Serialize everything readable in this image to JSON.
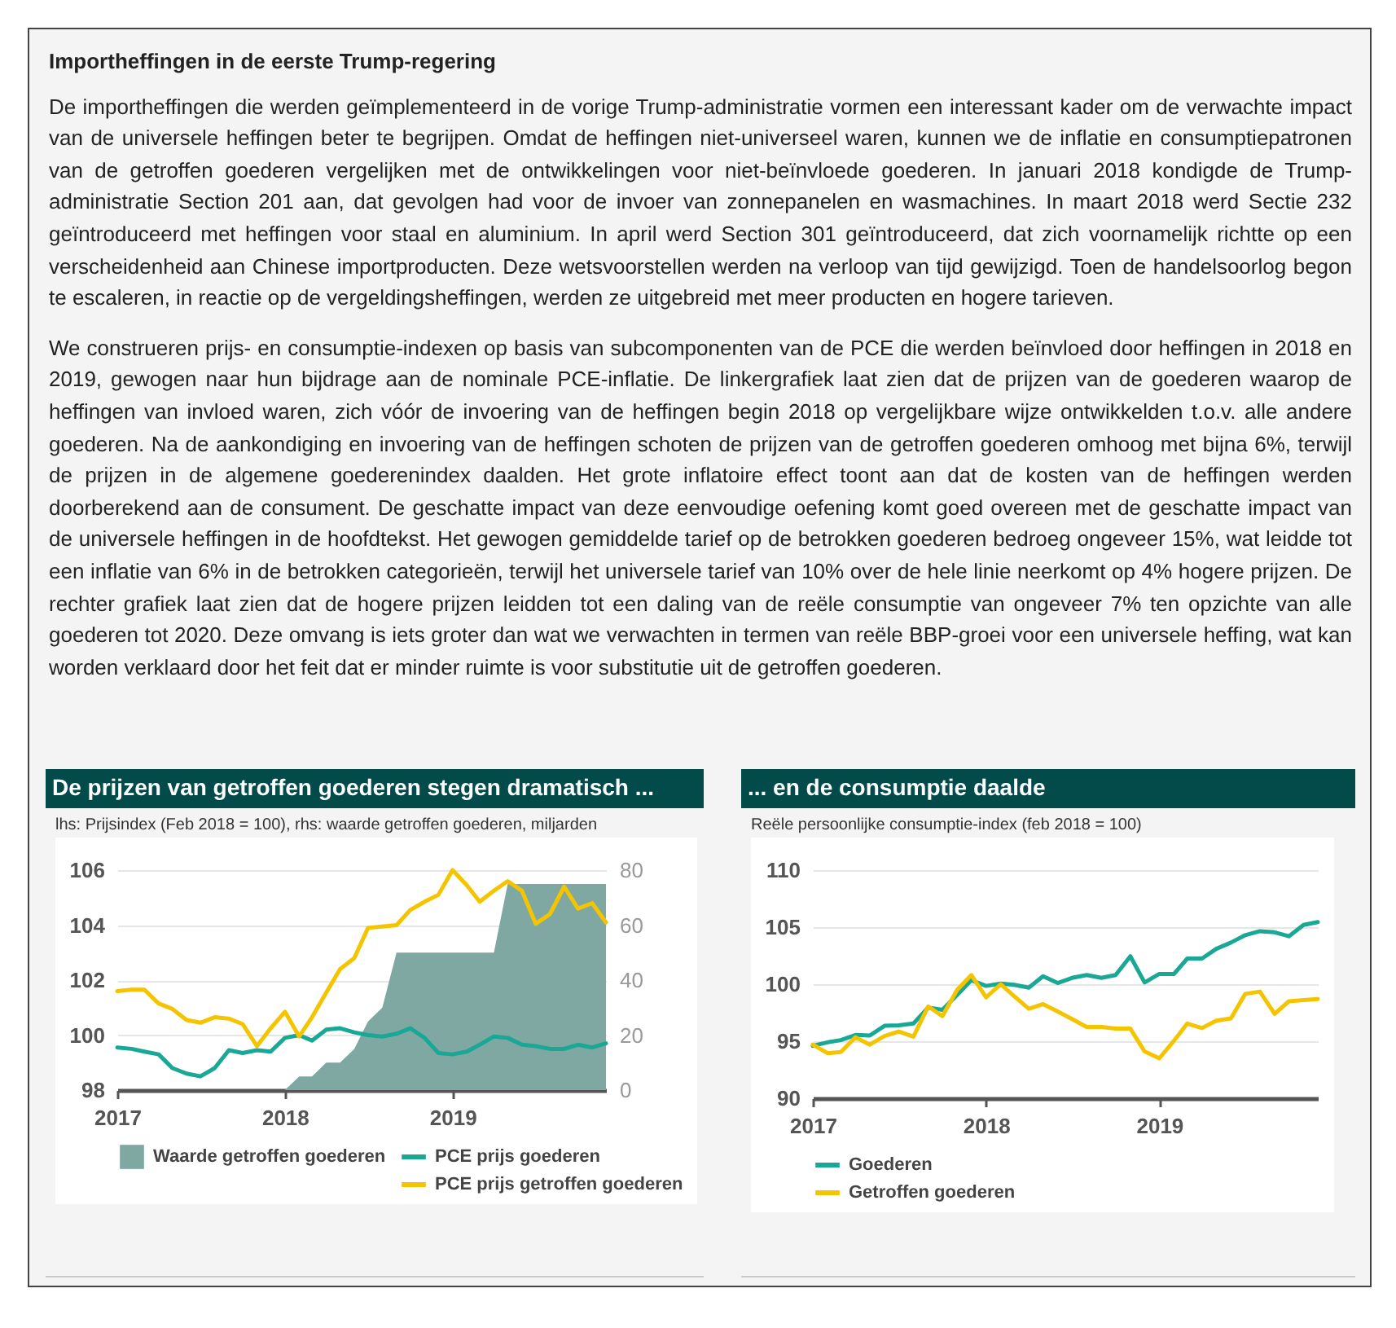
{
  "chart_data": [
    {
      "type": "other",
      "title": "Importheffingen in de eerste Trump-regering",
      "annotations": [
        "De importheffingen die werden geïmplementeerd in de vorige Trump-administratie vormen een interessant kader om de verwachte impact van de universele heffingen beter te begrijpen. Omdat de heffingen niet-universeel waren, kunnen we de inflatie en consumptiepatronen van de getroffen goederen vergelijken met de ontwikkelingen voor niet-beïnvloede goederen. In januari 2018 kondigde de Trump-administratie Section 201 aan, dat gevolgen had voor de invoer van zonnepanelen en wasmachines. In maart 2018 werd Sectie 232 geïntroduceerd met heffingen voor staal en aluminium. In april werd Section 301 geïntroduceerd, dat zich voornamelijk richtte op een verscheidenheid aan Chinese importproducten. Deze wetsvoorstellen werden na verloop van tijd gewijzigd. Toen de handelsoorlog begon te escaleren, in reactie op de vergeldingsheffingen, werden ze uitgebreid met meer producten en hogere tarieven.",
        "We construeren prijs- en consumptie-indexen op basis van subcomponenten van de PCE die werden beïnvloed door heffingen in 2018 en 2019, gewogen naar hun bijdrage aan de nominale PCE-inflatie. De linkergrafiek laat zien dat de prijzen van de goederen waarop de heffingen van invloed waren, zich vóór de invoering van de heffingen begin 2018 op vergelijkbare wijze ontwikkelden t.o.v. alle andere goederen. Na de aankondiging en invoering van de heffingen schoten de prijzen van de getroffen goederen omhoog met bijna 6%, terwijl de prijzen in de algemene goederenindex daalden. Het grote inflatoire effect toont aan dat de kosten van de heffingen werden doorberekend aan de consument. De geschatte impact van deze eenvoudige oefening komt goed overeen met de geschatte impact van de universele heffingen in de hoofdtekst. Het gewogen gemiddelde tarief op de betrokken goederen bedroeg ongeveer 15%, wat leidde tot een inflatie van 6% in de betrokken categorieën, terwijl het universele tarief van 10% over de hele linie neerkomt op 4% hogere prijzen. De rechter grafiek laat zien dat de hogere prijzen leidden tot een daling van de reële consumptie van ongeveer 7% ten opzichte van alle goederen tot 2020. Deze omvang is iets groter dan wat we verwachten in termen van reële BBP-groei voor een universele heffing, wat kan worden verklaard door het feit dat er minder ruimte is voor substitutie uit de getroffen goederen."
      ]
    },
    {
      "type": "line",
      "title": "De prijzen van getroffen goederen stegen dramatisch ...",
      "subtitle": "lhs: Prijsindex (Feb 2018 = 100), rhs: waarde getroffen goederen, miljarden",
      "x": [
        "2017-01",
        "2017-02",
        "2017-03",
        "2017-04",
        "2017-05",
        "2017-06",
        "2017-07",
        "2017-08",
        "2017-09",
        "2017-10",
        "2017-11",
        "2017-12",
        "2018-01",
        "2018-02",
        "2018-03",
        "2018-04",
        "2018-05",
        "2018-06",
        "2018-07",
        "2018-08",
        "2018-09",
        "2018-10",
        "2018-11",
        "2018-12",
        "2019-01",
        "2019-02",
        "2019-03",
        "2019-04",
        "2019-05",
        "2019-06",
        "2019-07",
        "2019-08",
        "2019-09",
        "2019-10",
        "2019-11",
        "2019-12"
      ],
      "xlim": [
        "2017-01",
        "2019-12"
      ],
      "xticks": [
        "2017",
        "2018",
        "2019"
      ],
      "ylim": [
        98,
        106
      ],
      "yticks": [
        98,
        100,
        102,
        104,
        106
      ],
      "y2lim": [
        0,
        80
      ],
      "y2ticks": [
        0,
        20,
        40,
        60,
        80
      ],
      "grid": "y",
      "legend": "bottom",
      "series": [
        {
          "name": "Waarde getroffen goederen",
          "type": "area",
          "axis": "y2",
          "color": "#7fa8a3",
          "x": [
            "2018-01",
            "2018-02",
            "2018-03",
            "2018-04",
            "2018-05",
            "2018-06",
            "2018-07",
            "2018-08",
            "2018-09",
            "2018-10",
            "2018-11",
            "2018-12",
            "2019-01",
            "2019-02",
            "2019-03",
            "2019-04",
            "2019-05",
            "2019-06",
            "2019-07",
            "2019-08",
            "2019-09",
            "2019-10",
            "2019-11",
            "2019-12"
          ],
          "values": [
            0,
            5,
            5,
            10,
            10,
            15,
            25,
            30,
            50,
            50,
            50,
            50,
            50,
            50,
            50,
            50,
            75,
            75,
            75,
            75,
            75,
            75,
            75,
            75
          ]
        },
        {
          "name": "PCE prijs goederen",
          "color": "#1aa896",
          "values": [
            99.55,
            99.5,
            99.4,
            99.3,
            98.8,
            98.6,
            98.5,
            98.8,
            99.45,
            99.35,
            99.45,
            99.4,
            99.9,
            100.0,
            99.8,
            100.2,
            100.25,
            100.1,
            100.0,
            99.95,
            100.05,
            100.25,
            99.9,
            99.35,
            99.3,
            99.4,
            99.65,
            99.95,
            99.9,
            99.65,
            99.6,
            99.5,
            99.5,
            99.65,
            99.55,
            99.7
          ]
        },
        {
          "name": "PCE prijs getroffen goederen",
          "color": "#f5c400",
          "values": [
            101.6,
            101.65,
            101.65,
            101.15,
            100.95,
            100.55,
            100.45,
            100.65,
            100.6,
            100.4,
            99.6,
            100.25,
            100.85,
            99.95,
            100.65,
            101.55,
            102.4,
            102.8,
            103.9,
            103.95,
            104.0,
            104.55,
            104.85,
            105.1,
            106.0,
            105.45,
            104.85,
            105.25,
            105.6,
            105.25,
            104.05,
            104.4,
            105.4,
            104.6,
            104.8,
            104.1
          ]
        }
      ]
    },
    {
      "type": "line",
      "title": "... en de consumptie daalde",
      "subtitle": "Reële persoonlijke consumptie-index (feb 2018 = 100)",
      "x": [
        "2017-01",
        "2017-02",
        "2017-03",
        "2017-04",
        "2017-05",
        "2017-06",
        "2017-07",
        "2017-08",
        "2017-09",
        "2017-10",
        "2017-11",
        "2017-12",
        "2018-01",
        "2018-02",
        "2018-03",
        "2018-04",
        "2018-05",
        "2018-06",
        "2018-07",
        "2018-08",
        "2018-09",
        "2018-10",
        "2018-11",
        "2018-12",
        "2019-01",
        "2019-02",
        "2019-03",
        "2019-04",
        "2019-05",
        "2019-06",
        "2019-07",
        "2019-08",
        "2019-09",
        "2019-10",
        "2019-11",
        "2019-12"
      ],
      "xlim": [
        "2017-01",
        "2019-12"
      ],
      "xticks": [
        "2017",
        "2018",
        "2019"
      ],
      "ylim": [
        90,
        110
      ],
      "yticks": [
        90,
        95,
        100,
        105,
        110
      ],
      "grid": "y",
      "legend": "bottom",
      "series": [
        {
          "name": "Goederen",
          "color": "#1aa896",
          "values": [
            94.6,
            94.9,
            95.1,
            95.55,
            95.5,
            96.35,
            96.4,
            96.55,
            97.95,
            97.75,
            99.05,
            100.35,
            99.85,
            100.05,
            99.95,
            99.7,
            100.7,
            100.1,
            100.55,
            100.8,
            100.55,
            100.8,
            102.45,
            100.15,
            100.9,
            100.9,
            102.25,
            102.25,
            103.1,
            103.65,
            104.3,
            104.65,
            104.55,
            104.2,
            105.2,
            105.45
          ]
        },
        {
          "name": "Getroffen goederen",
          "color": "#f5c400",
          "values": [
            94.7,
            93.95,
            94.05,
            95.35,
            94.7,
            95.45,
            95.85,
            95.4,
            98.05,
            97.2,
            99.5,
            100.8,
            98.85,
            100.0,
            98.95,
            97.85,
            98.25,
            97.6,
            96.95,
            96.25,
            96.25,
            96.1,
            96.1,
            94.1,
            93.5,
            95.05,
            96.55,
            96.15,
            96.8,
            97.0,
            99.15,
            99.35,
            97.4,
            98.5,
            98.6,
            98.7
          ]
        }
      ]
    }
  ]
}
